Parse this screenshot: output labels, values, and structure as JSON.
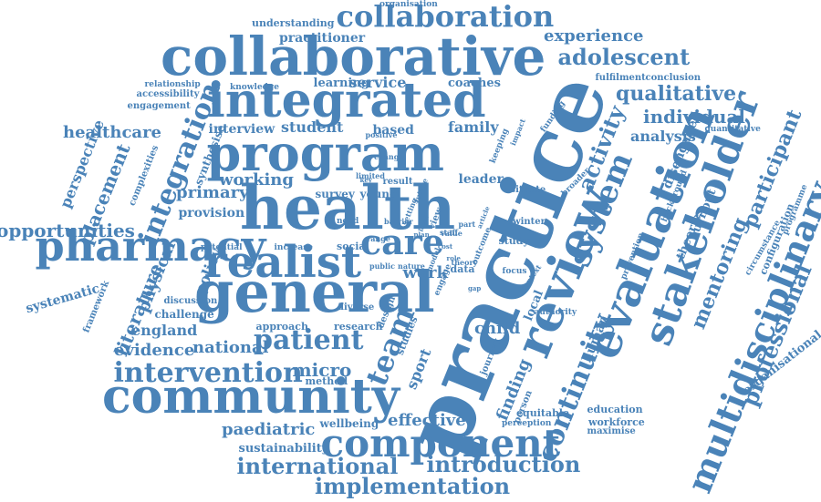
{
  "word_cloud": {
    "color": "#4a83b8",
    "words": [
      {
        "text": "practice",
        "vertical": true
      },
      {
        "text": "health",
        "vertical": false
      },
      {
        "text": "program",
        "vertical": false
      },
      {
        "text": "general",
        "vertical": false
      },
      {
        "text": "collaborative",
        "vertical": false
      },
      {
        "text": "integrated",
        "vertical": false
      },
      {
        "text": "community",
        "vertical": false
      },
      {
        "text": "pharmacy",
        "vertical": false
      },
      {
        "text": "realist",
        "vertical": false
      },
      {
        "text": "review",
        "vertical": true
      },
      {
        "text": "evaluation",
        "vertical": true
      },
      {
        "text": "stakeholder",
        "vertical": true
      },
      {
        "text": "system",
        "vertical": true
      },
      {
        "text": "multidisciplinary",
        "vertical": true
      },
      {
        "text": "component",
        "vertical": false
      },
      {
        "text": "collaboration",
        "vertical": false
      },
      {
        "text": "care",
        "vertical": false
      },
      {
        "text": "integration",
        "vertical": true
      },
      {
        "text": "intervention",
        "vertical": false
      },
      {
        "text": "patient",
        "vertical": false
      },
      {
        "text": "team",
        "vertical": true
      },
      {
        "text": "continuity",
        "vertical": true
      },
      {
        "text": "adolescent",
        "vertical": false
      },
      {
        "text": "implementation",
        "vertical": false
      },
      {
        "text": "international",
        "vertical": false
      },
      {
        "text": "introduction",
        "vertical": false
      },
      {
        "text": "professional",
        "vertical": true
      },
      {
        "text": "qualitative",
        "vertical": false
      },
      {
        "text": "activity",
        "vertical": true
      },
      {
        "text": "mentoring",
        "vertical": true
      },
      {
        "text": "participant",
        "vertical": true
      },
      {
        "text": "experience",
        "vertical": false
      },
      {
        "text": "individual",
        "vertical": false
      },
      {
        "text": "opportunities",
        "vertical": false
      },
      {
        "text": "placement",
        "vertical": true
      },
      {
        "text": "healthcare",
        "vertical": false
      },
      {
        "text": "primary",
        "vertical": false
      },
      {
        "text": "analysis",
        "vertical": false
      },
      {
        "text": "evidence",
        "vertical": false
      },
      {
        "text": "national",
        "vertical": false
      },
      {
        "text": "literature",
        "vertical": true
      },
      {
        "text": "paediatric",
        "vertical": false
      },
      {
        "text": "micro",
        "vertical": false
      },
      {
        "text": "effective",
        "vertical": false
      },
      {
        "text": "perspective",
        "vertical": true
      },
      {
        "text": "england",
        "vertical": false
      },
      {
        "text": "working",
        "vertical": false
      },
      {
        "text": "student",
        "vertical": false
      },
      {
        "text": "interview",
        "vertical": false
      },
      {
        "text": "service",
        "vertical": false
      },
      {
        "text": "learning",
        "vertical": false
      },
      {
        "text": "coaches",
        "vertical": false
      },
      {
        "text": "based",
        "vertical": false
      },
      {
        "text": "family",
        "vertical": false
      },
      {
        "text": "finding",
        "vertical": true
      },
      {
        "text": "physical",
        "vertical": true
      },
      {
        "text": "policy",
        "vertical": true
      },
      {
        "text": "child",
        "vertical": false
      },
      {
        "text": "sport",
        "vertical": true
      },
      {
        "text": "disengaged",
        "vertical": true
      },
      {
        "text": "organisational",
        "vertical": true
      },
      {
        "text": "provision",
        "vertical": false
      },
      {
        "text": "practitioner",
        "vertical": false
      },
      {
        "text": "understanding",
        "vertical": false
      },
      {
        "text": "organisation",
        "vertical": false
      },
      {
        "text": "fulfilment",
        "vertical": false
      },
      {
        "text": "conclusion",
        "vertical": false
      },
      {
        "text": "wellbeing",
        "vertical": false
      },
      {
        "text": "sustainability",
        "vertical": false
      },
      {
        "text": "workforce",
        "vertical": false
      },
      {
        "text": "education",
        "vertical": false
      },
      {
        "text": "maximise",
        "vertical": false
      },
      {
        "text": "equitable",
        "vertical": false
      },
      {
        "text": "perception",
        "vertical": false
      },
      {
        "text": "systematic",
        "vertical": false
      },
      {
        "text": "challenge",
        "vertical": false
      },
      {
        "text": "approach",
        "vertical": false
      },
      {
        "text": "research",
        "vertical": false
      },
      {
        "text": "method",
        "vertical": false
      },
      {
        "text": "human",
        "vertical": true
      },
      {
        "text": "local",
        "vertical": true
      },
      {
        "text": "theories",
        "vertical": true
      },
      {
        "text": "burnout",
        "vertical": true
      },
      {
        "text": "configuration",
        "vertical": true
      },
      {
        "text": "circumstance",
        "vertical": true
      },
      {
        "text": "programme",
        "vertical": true
      },
      {
        "text": "quantitative",
        "vertical": false
      },
      {
        "text": "background",
        "vertical": true
      },
      {
        "text": "prevention",
        "vertical": true
      },
      {
        "text": "leader",
        "vertical": false
      },
      {
        "text": "survey",
        "vertical": false
      },
      {
        "text": "young",
        "vertical": false
      },
      {
        "text": "result",
        "vertical": false
      },
      {
        "text": "need",
        "vertical": false
      },
      {
        "text": "social",
        "vertical": false
      },
      {
        "text": "study",
        "vertical": false
      },
      {
        "text": "winter",
        "vertical": false
      },
      {
        "text": "focus",
        "vertical": false
      },
      {
        "text": "authority",
        "vertical": false
      },
      {
        "text": "diverse",
        "vertical": false
      },
      {
        "text": "studies",
        "vertical": true
      },
      {
        "text": "journey",
        "vertical": true
      },
      {
        "text": "person",
        "vertical": true
      },
      {
        "text": "situate",
        "vertical": false
      },
      {
        "text": "broader",
        "vertical": true
      },
      {
        "text": "design",
        "vertical": true
      },
      {
        "text": "data",
        "vertical": false
      },
      {
        "text": "work",
        "vertical": false
      },
      {
        "text": "synthesise",
        "vertical": true
      },
      {
        "text": "complexities",
        "vertical": true
      },
      {
        "text": "framework",
        "vertical": true
      },
      {
        "text": "discussion",
        "vertical": false
      },
      {
        "text": "potential",
        "vertical": false
      },
      {
        "text": "increase",
        "vertical": false
      },
      {
        "text": "relationship",
        "vertical": false
      },
      {
        "text": "accessibility",
        "vertical": false
      },
      {
        "text": "engagement",
        "vertical": false
      },
      {
        "text": "knowledge",
        "vertical": false
      },
      {
        "text": "keeping",
        "vertical": true
      },
      {
        "text": "impact",
        "vertical": true
      },
      {
        "text": "funding",
        "vertical": true
      },
      {
        "text": "positive",
        "vertical": false
      },
      {
        "text": "change",
        "vertical": false
      },
      {
        "text": "limited",
        "vertical": false
      },
      {
        "text": "outcome",
        "vertical": true
      },
      {
        "text": "value",
        "vertical": false
      },
      {
        "text": "theory",
        "vertical": false
      },
      {
        "text": "context",
        "vertical": true
      },
      {
        "text": "future",
        "vertical": true
      },
      {
        "text": "engage",
        "vertical": true
      },
      {
        "text": "barrier",
        "vertical": false
      },
      {
        "text": "setting",
        "vertical": true
      },
      {
        "text": "range",
        "vertical": false
      },
      {
        "text": "public",
        "vertical": false
      },
      {
        "text": "nature",
        "vertical": false
      },
      {
        "text": "staff",
        "vertical": false
      },
      {
        "text": "view",
        "vertical": true
      },
      {
        "text": "part",
        "vertical": false
      },
      {
        "text": "plan",
        "vertical": false
      },
      {
        "text": "role",
        "vertical": false
      },
      {
        "text": "article",
        "vertical": true
      },
      {
        "text": "cost",
        "vertical": false
      },
      {
        "text": "key",
        "vertical": false
      },
      {
        "text": "level",
        "vertical": true
      },
      {
        "text": "model",
        "vertical": true
      },
      {
        "text": "gap",
        "vertical": false
      }
    ]
  }
}
